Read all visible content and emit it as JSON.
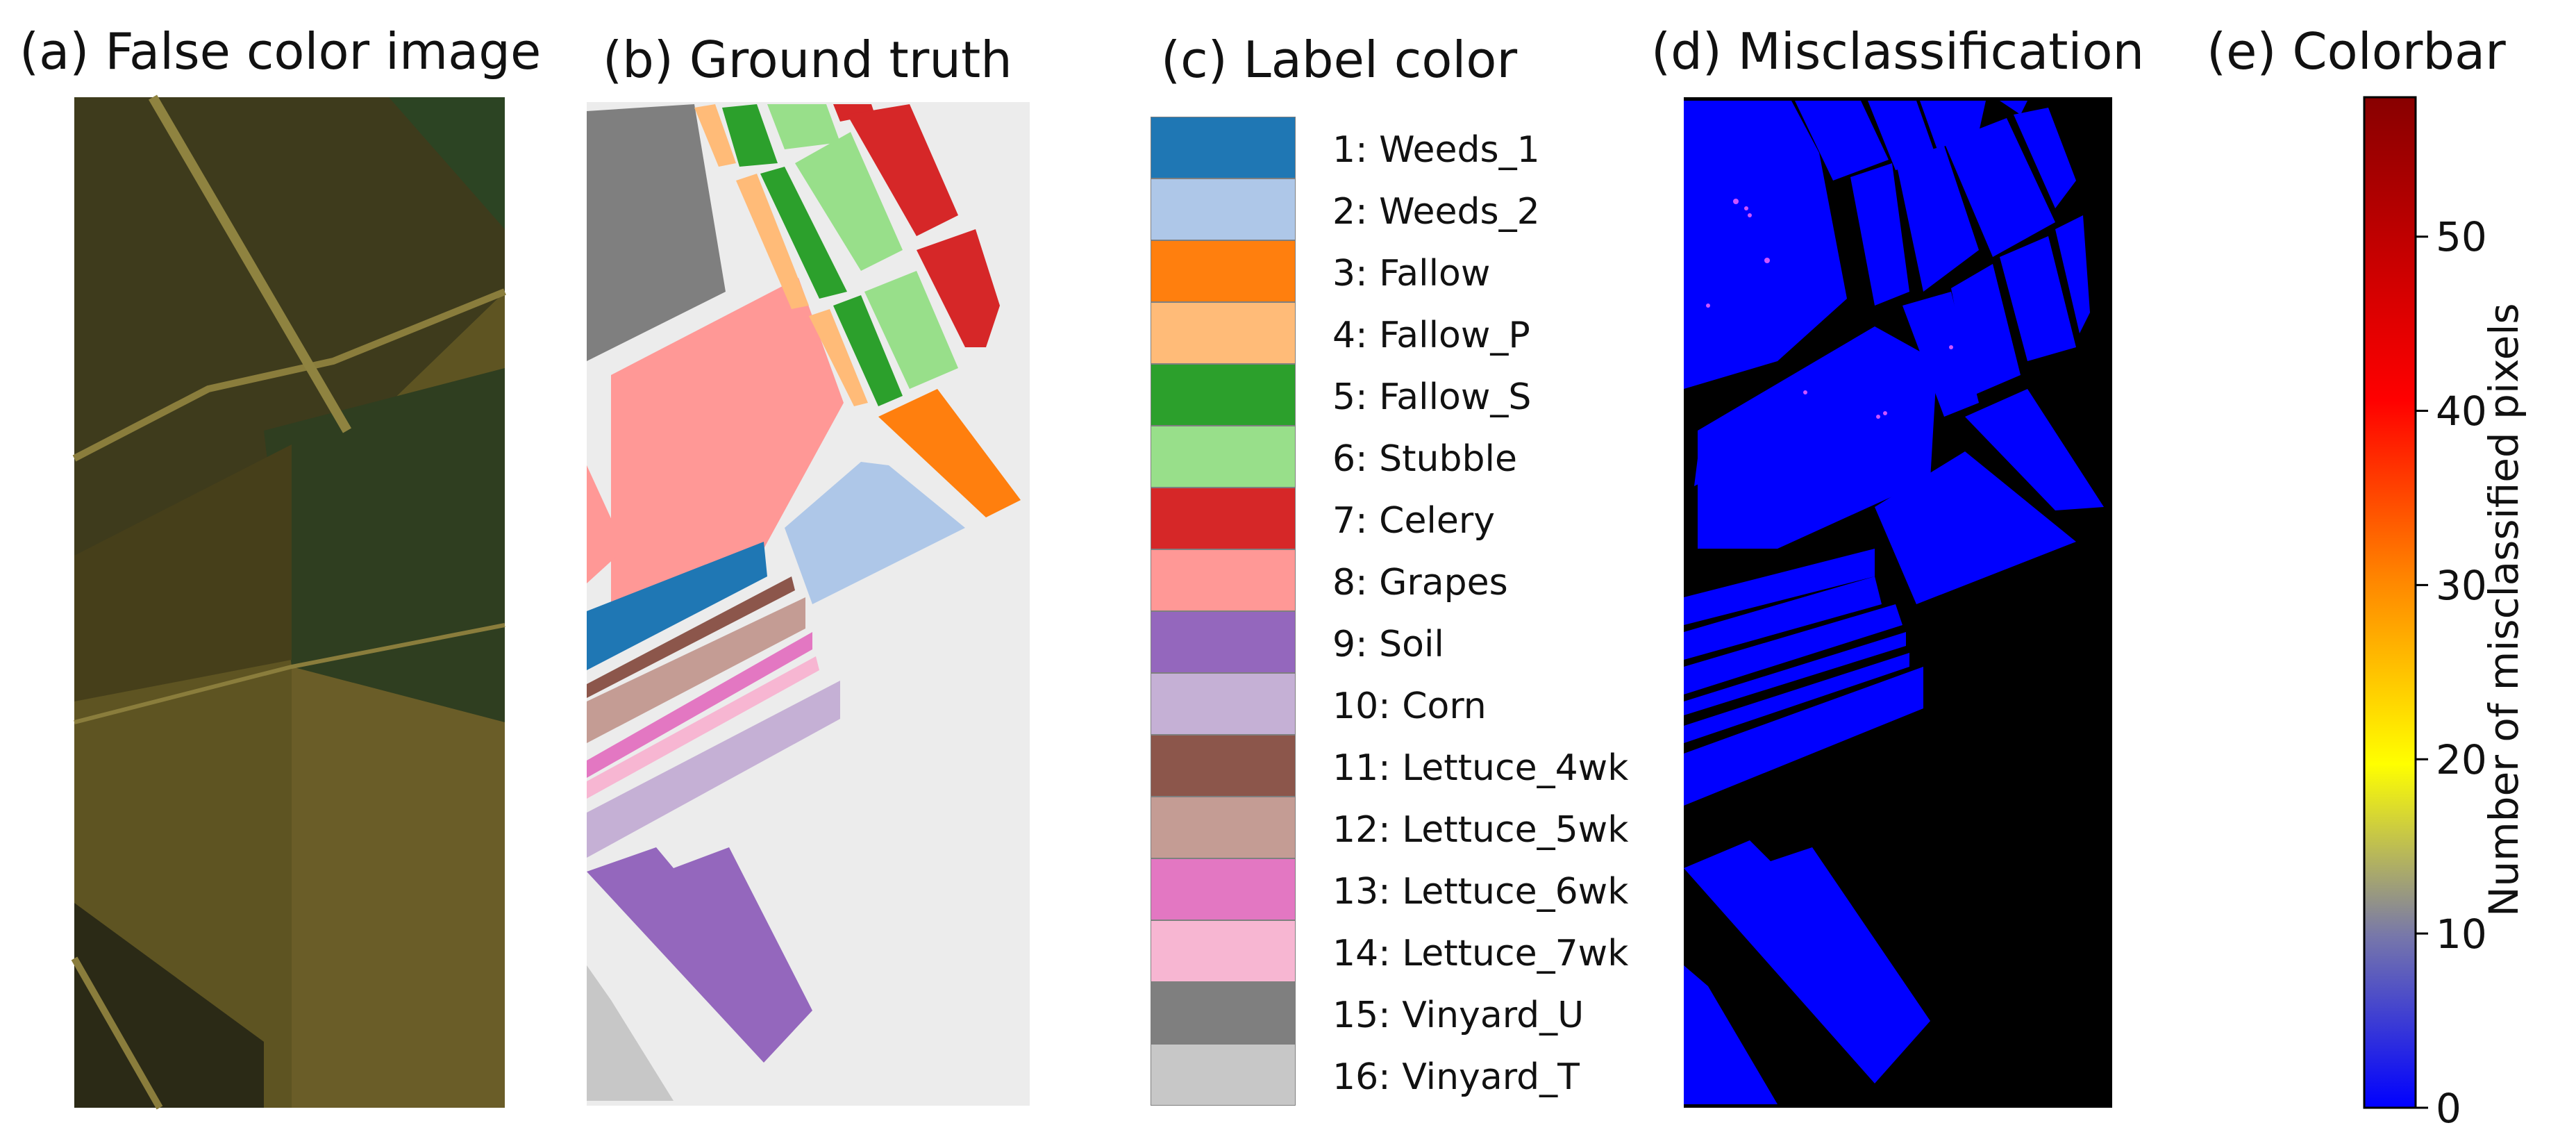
{
  "panels": {
    "false_color": {
      "title": "(a) False color image"
    },
    "ground_truth": {
      "title": "(b) Ground truth"
    },
    "label_color": {
      "title": "(c) Label color"
    },
    "misclassification": {
      "title": "(d) Misclassification"
    },
    "colorbar": {
      "title": "(e) Colorbar"
    }
  },
  "legend": [
    {
      "label": "1: Weeds_1",
      "color": "#1f77b4"
    },
    {
      "label": "2: Weeds_2",
      "color": "#aec7e8"
    },
    {
      "label": "3: Fallow",
      "color": "#ff7f0e"
    },
    {
      "label": "4: Fallow_P",
      "color": "#ffbb78"
    },
    {
      "label": "5: Fallow_S",
      "color": "#2ca02c"
    },
    {
      "label": "6: Stubble",
      "color": "#98df8a"
    },
    {
      "label": "7: Celery",
      "color": "#d62728"
    },
    {
      "label": "8: Grapes",
      "color": "#ff9896"
    },
    {
      "label": "9: Soil",
      "color": "#9467bd"
    },
    {
      "label": "10: Corn",
      "color": "#c5b0d5"
    },
    {
      "label": "11: Lettuce_4wk",
      "color": "#8c564b"
    },
    {
      "label": "12: Lettuce_5wk",
      "color": "#c49c94"
    },
    {
      "label": "13: Lettuce_6wk",
      "color": "#e377c2"
    },
    {
      "label": "14: Lettuce_7wk",
      "color": "#f7b6d2"
    },
    {
      "label": "15: Vinyard_U",
      "color": "#7f7f7f"
    },
    {
      "label": "16: Vinyard_T",
      "color": "#c7c7c7"
    }
  ],
  "colorbar": {
    "axis_label": "Number of misclassified pixels",
    "min": 0,
    "max": 58,
    "ticks": [
      "0",
      "10",
      "20",
      "30",
      "40",
      "50"
    ],
    "colormap": [
      "#0000ff",
      "#7777aa",
      "#ffff00",
      "#ff8800",
      "#ff0000",
      "#880000"
    ]
  },
  "colors": {
    "background_gray": "#ececec",
    "misclass_background": "#000000",
    "correct_fill": "#0000ff"
  }
}
